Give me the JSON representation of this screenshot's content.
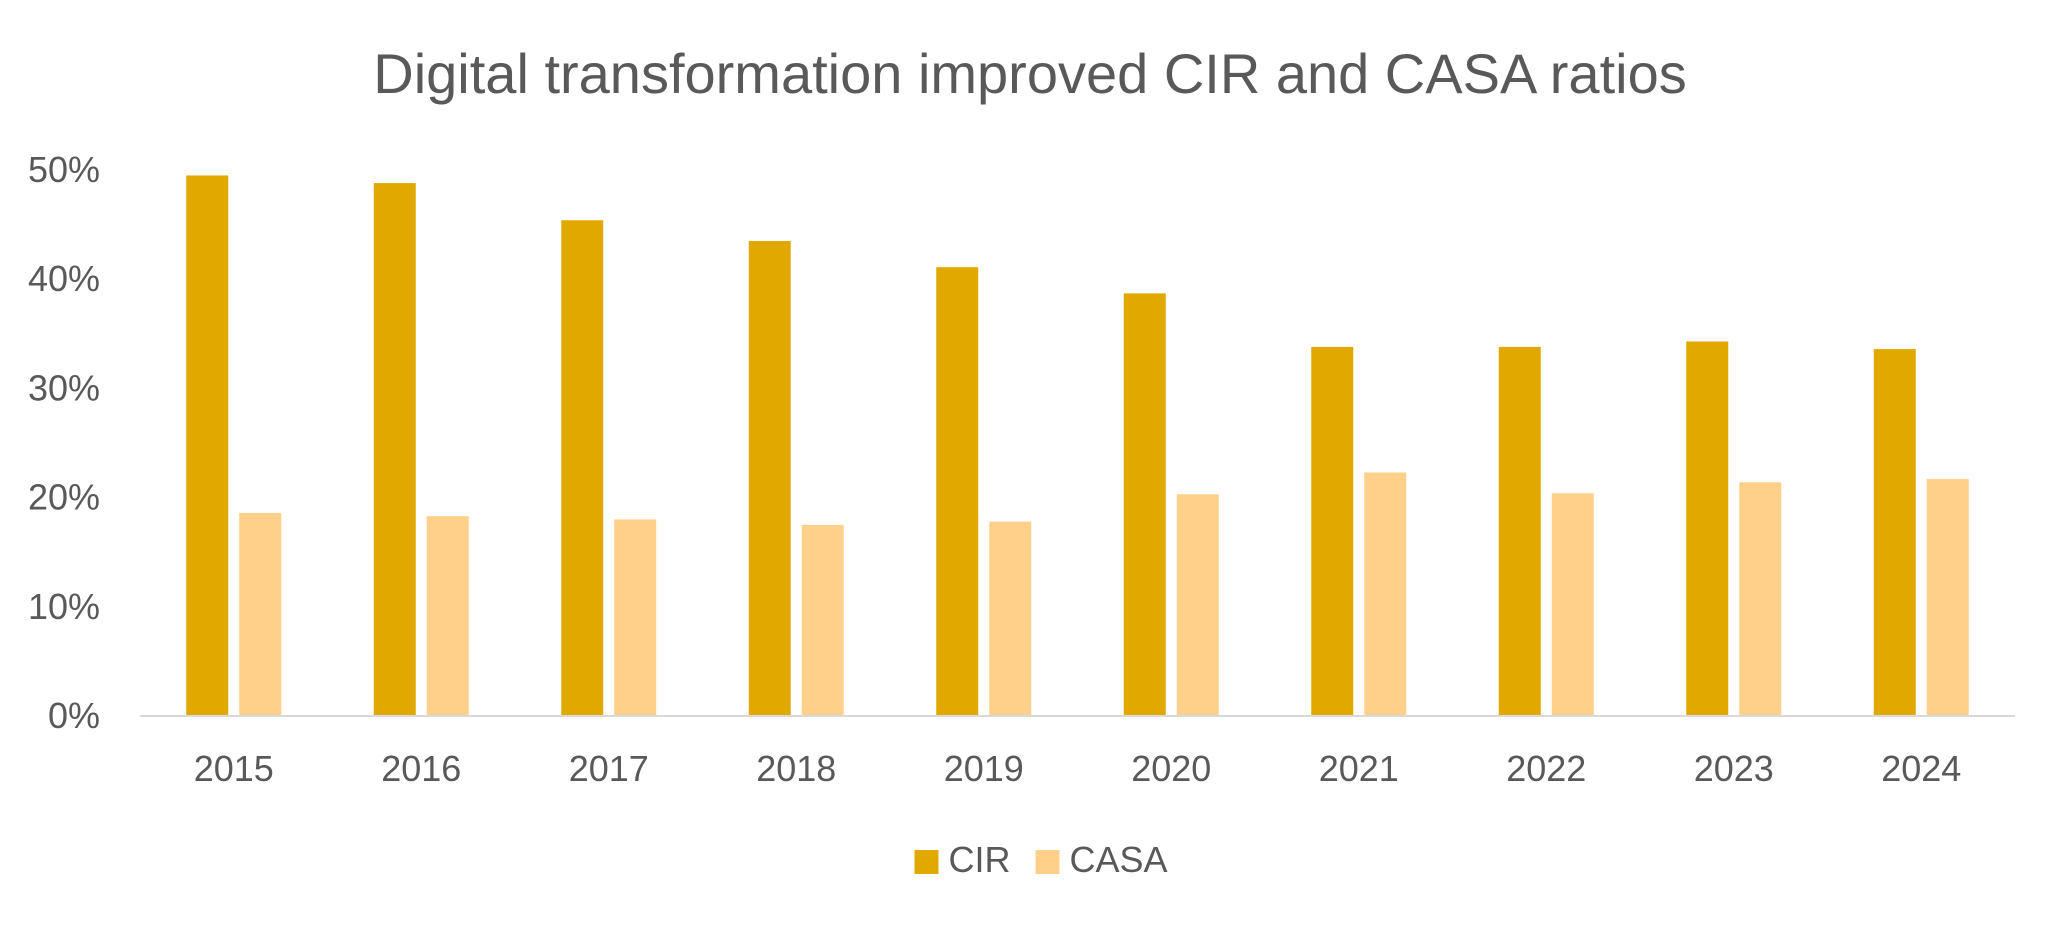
{
  "chart_data": {
    "type": "bar",
    "title": "Digital transformation improved CIR and CASA ratios",
    "xlabel": "",
    "ylabel": "",
    "categories": [
      "2015",
      "2016",
      "2017",
      "2018",
      "2019",
      "2020",
      "2021",
      "2022",
      "2023",
      "2024"
    ],
    "series": [
      {
        "name": "CIR",
        "color": "#E1A800",
        "values": [
          49.5,
          48.8,
          45.4,
          43.5,
          41.1,
          38.7,
          33.8,
          33.8,
          34.3,
          33.6
        ]
      },
      {
        "name": "CASA",
        "color": "#FFD08A",
        "values": [
          18.6,
          18.3,
          18.0,
          17.5,
          17.8,
          20.3,
          22.3,
          20.4,
          21.4,
          21.7
        ]
      }
    ],
    "ylim": [
      0,
      50
    ],
    "yticks": [
      "0%",
      "10%",
      "20%",
      "30%",
      "40%",
      "50%"
    ],
    "grid": false,
    "legend_position": "bottom"
  }
}
